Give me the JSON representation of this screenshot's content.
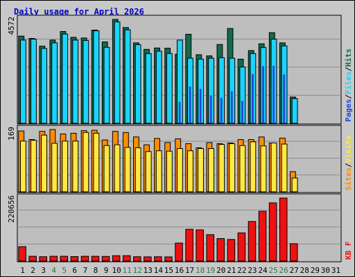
{
  "chart_data": {
    "type": "bar",
    "title": "Daily usage for April 2026",
    "categories": [
      "1",
      "2",
      "3",
      "4",
      "5",
      "6",
      "7",
      "8",
      "9",
      "10",
      "11",
      "12",
      "13",
      "14",
      "15",
      "16",
      "17",
      "18",
      "19",
      "20",
      "21",
      "22",
      "23",
      "24",
      "25",
      "26",
      "27",
      "28",
      "29",
      "30",
      "31"
    ],
    "weekend_days": [
      "4",
      "5",
      "11",
      "12",
      "18",
      "19",
      "25",
      "26"
    ],
    "colors": {
      "title": "#0000cc",
      "day": "#000000",
      "weekend": "#2a7a4a",
      "hits": "#126b4e",
      "files": "#1ad4ff",
      "pages": "#2244dd",
      "visits": "#ffe844",
      "sites": "#ff8c00",
      "kbf": "#ee1111",
      "panel": "#bebebe",
      "grid": "#8c8c8c"
    },
    "panels": [
      {
        "max_label": "4572",
        "legend": [
          "Pages",
          "/",
          "Files",
          "/",
          "Hits"
        ],
        "series": [
          {
            "name": "Hits",
            "values": [
              3750,
              3650,
              3320,
              3580,
              3950,
              3700,
              3670,
              4010,
              3500,
              4470,
              4120,
              3460,
              3180,
              3240,
              3230,
              2970,
              3830,
              2950,
              2900,
              3390,
              4080,
              2760,
              3130,
              3420,
              3900,
              3460,
              1130,
              0,
              0,
              0,
              0
            ]
          },
          {
            "name": "Files",
            "values": [
              3580,
              3620,
              3220,
              3460,
              3840,
              3580,
              3560,
              3980,
              3270,
              4360,
              4020,
              3380,
              3000,
              3100,
              3000,
              3580,
              2800,
              2760,
              2800,
              2820,
              2800,
              2420,
              3000,
              3260,
              3620,
              3330,
              1060,
              0,
              0,
              0,
              0
            ]
          },
          {
            "name": "Pages",
            "values": [
              0,
              0,
              0,
              0,
              0,
              0,
              0,
              0,
              0,
              0,
              0,
              0,
              0,
              0,
              0,
              920,
              1580,
              1480,
              1200,
              1090,
              1380,
              960,
              2120,
              2460,
              2480,
              2100,
              0,
              0,
              0,
              0,
              0
            ]
          }
        ]
      },
      {
        "max_label": "169",
        "legend": [
          "Sites",
          "/",
          "Visits"
        ],
        "series": [
          {
            "name": "Sites",
            "values": [
              163,
              140,
              162,
              167,
              155,
              157,
              164,
              165,
              139,
              162,
              159,
              147,
              126,
              143,
              132,
              142,
              129,
              118,
              132,
              129,
              131,
              140,
              140,
              147,
              131,
              144,
              54,
              0,
              0,
              0,
              0
            ]
          },
          {
            "name": "Visits",
            "values": [
              136,
              138,
              152,
              130,
              136,
              136,
              159,
              157,
              124,
              126,
              119,
              118,
              108,
              110,
              109,
              116,
              110,
              116,
              116,
              127,
              129,
              124,
              134,
              123,
              131,
              128,
              37,
              0,
              0,
              0,
              0
            ]
          }
        ]
      },
      {
        "max_label": "220656",
        "legend": [
          "KB F"
        ],
        "series": [
          {
            "name": "KB F",
            "values": [
              48000,
              16000,
              14500,
              16000,
              16000,
              15000,
              16000,
              16000,
              15500,
              18000,
              18000,
              14500,
              14000,
              14500,
              14000,
              60000,
              106000,
              104000,
              88000,
              75000,
              72000,
              94000,
              132000,
              166000,
              194000,
              210000,
              58000,
              0,
              0,
              0,
              0
            ]
          }
        ]
      }
    ]
  }
}
